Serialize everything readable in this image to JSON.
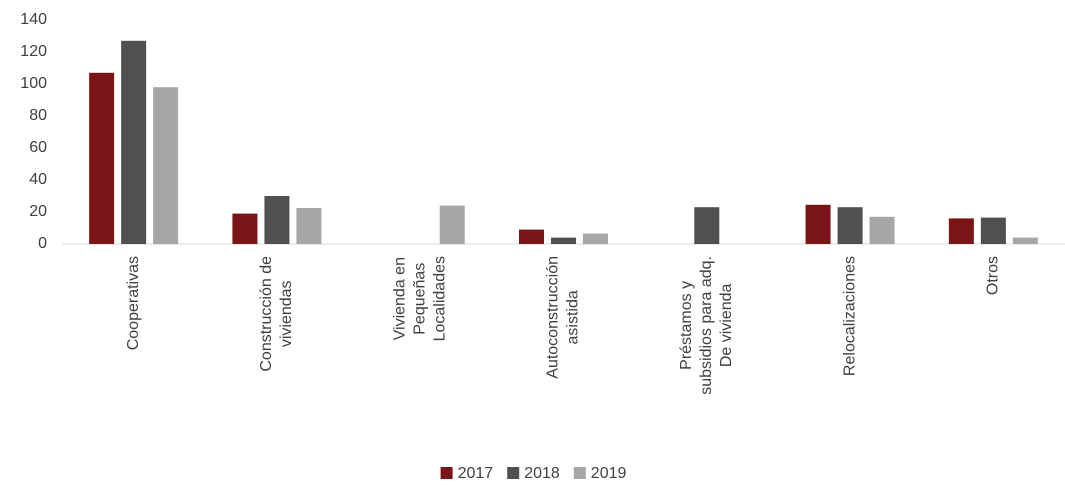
{
  "chart_data": {
    "type": "bar",
    "categories": [
      "Cooperativas",
      "Construcción de\nviviendas",
      "Vivienda en\nPequeñas\nLocalidades",
      "Autoconstrucción\nasistida",
      "Préstamos y\nsubsidios para adq.\nDe vivienda",
      "Relocalizaciones",
      "Otros"
    ],
    "series": [
      {
        "name": "2017",
        "color": "#7b1416",
        "values": [
          107,
          19,
          0,
          9,
          0,
          24.5,
          16
        ]
      },
      {
        "name": "2018",
        "color": "#505050",
        "values": [
          127,
          30,
          0,
          4,
          23,
          23,
          16.5
        ]
      },
      {
        "name": "2019",
        "color": "#a6a6a6",
        "values": [
          98,
          22.5,
          24,
          6.5,
          0,
          17,
          4
        ]
      }
    ],
    "ylim": [
      0,
      140
    ],
    "yticks": [
      0,
      20,
      40,
      60,
      80,
      100,
      120,
      140
    ],
    "grid": false,
    "legend": "bottom"
  }
}
